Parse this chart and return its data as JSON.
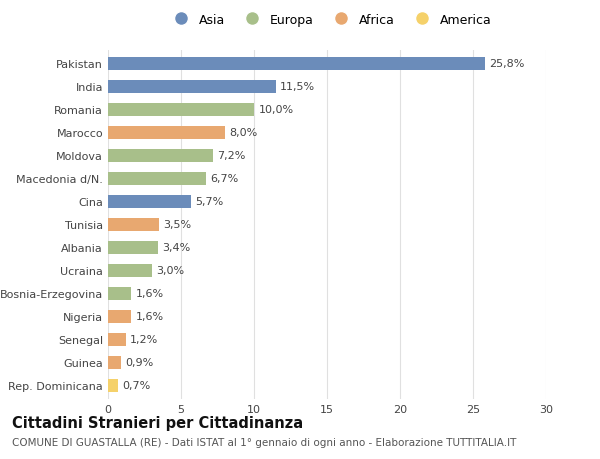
{
  "categories": [
    "Rep. Dominicana",
    "Guinea",
    "Senegal",
    "Nigeria",
    "Bosnia-Erzegovina",
    "Ucraina",
    "Albania",
    "Tunisia",
    "Cina",
    "Macedonia d/N.",
    "Moldova",
    "Marocco",
    "Romania",
    "India",
    "Pakistan"
  ],
  "values": [
    0.7,
    0.9,
    1.2,
    1.6,
    1.6,
    3.0,
    3.4,
    3.5,
    5.7,
    6.7,
    7.2,
    8.0,
    10.0,
    11.5,
    25.8
  ],
  "colors": [
    "#f5d16a",
    "#e8a870",
    "#e8a870",
    "#e8a870",
    "#a8bf8a",
    "#a8bf8a",
    "#a8bf8a",
    "#e8a870",
    "#6b8cba",
    "#a8bf8a",
    "#a8bf8a",
    "#e8a870",
    "#a8bf8a",
    "#6b8cba",
    "#6b8cba"
  ],
  "labels": [
    "0,7%",
    "0,9%",
    "1,2%",
    "1,6%",
    "1,6%",
    "3,0%",
    "3,4%",
    "3,5%",
    "5,7%",
    "6,7%",
    "7,2%",
    "8,0%",
    "10,0%",
    "11,5%",
    "25,8%"
  ],
  "legend_labels": [
    "Asia",
    "Europa",
    "Africa",
    "America"
  ],
  "legend_colors": [
    "#6b8cba",
    "#a8bf8a",
    "#e8a870",
    "#f5d16a"
  ],
  "title": "Cittadini Stranieri per Cittadinanza",
  "subtitle": "COMUNE DI GUASTALLA (RE) - Dati ISTAT al 1° gennaio di ogni anno - Elaborazione TUTTITALIA.IT",
  "xlim": [
    0,
    30
  ],
  "xticks": [
    0,
    5,
    10,
    15,
    20,
    25,
    30
  ],
  "background_color": "#ffffff",
  "grid_color": "#e0e0e0",
  "bar_height": 0.55,
  "label_fontsize": 8,
  "tick_fontsize": 8,
  "title_fontsize": 10.5,
  "subtitle_fontsize": 7.5
}
